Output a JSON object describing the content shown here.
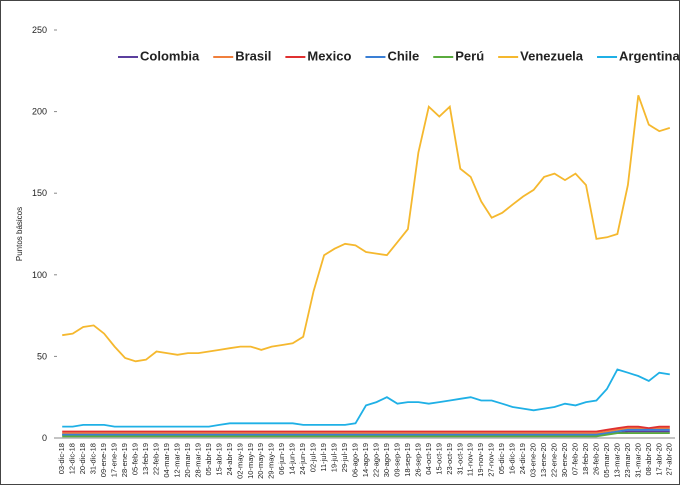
{
  "chart_data": {
    "type": "line",
    "y_label": "Puntos básicos",
    "categories": [
      "03-dic-18",
      "12-dic-18",
      "20-dic-18",
      "31-dic-18",
      "09-ene-19",
      "17-ene-19",
      "28-ene-19",
      "05-feb-19",
      "13-feb-19",
      "22-feb-19",
      "04-mar-19",
      "12-mar-19",
      "20-mar-19",
      "28-mar-19",
      "05-abr-19",
      "15-abr-19",
      "24-abr-19",
      "02-may-19",
      "10-may-19",
      "20-may-19",
      "29-may-19",
      "06-jun-19",
      "14-jun-19",
      "24-jun-19",
      "02-jul-19",
      "11-jul-19",
      "19-jul-19",
      "29-jul-19",
      "06-ago-19",
      "14-ago-19",
      "22-ago-19",
      "30-ago-19",
      "09-sep-19",
      "18-sep-19",
      "26-sep-19",
      "04-oct-19",
      "15-oct-19",
      "23-oct-19",
      "31-oct-19",
      "11-nov-19",
      "19-nov-19",
      "27-nov-19",
      "05-dic-19",
      "16-dic-19",
      "24-dic-19",
      "03-ene-20",
      "13-ene-20",
      "22-ene-20",
      "30-ene-20",
      "07-feb-20",
      "18-feb-20",
      "26-feb-20",
      "05-mar-20",
      "13-mar-20",
      "23-mar-20",
      "31-mar-20",
      "08-abr-20",
      "17-abr-20",
      "27-abr-20"
    ],
    "series": [
      {
        "name": "Colombia",
        "color": "#5b3f9e",
        "values": [
          2,
          2,
          2,
          2,
          2,
          2,
          2,
          2,
          2,
          2,
          2,
          2,
          2,
          2,
          2,
          2,
          2,
          2,
          2,
          2,
          2,
          2,
          2,
          2,
          2,
          2,
          2,
          2,
          2,
          2,
          2,
          2,
          2,
          2,
          2,
          2,
          2,
          2,
          2,
          2,
          2,
          2,
          2,
          2,
          2,
          2,
          2,
          2,
          2,
          2,
          2,
          2,
          3,
          3,
          4,
          4,
          4,
          4,
          4
        ]
      },
      {
        "name": "Brasil",
        "color": "#f07f3c",
        "values": [
          3,
          3,
          3,
          3,
          3,
          3,
          3,
          3,
          3,
          3,
          3,
          3,
          3,
          3,
          3,
          3,
          3,
          3,
          3,
          3,
          3,
          3,
          3,
          3,
          3,
          3,
          3,
          3,
          3,
          3,
          3,
          3,
          3,
          3,
          3,
          3,
          3,
          3,
          3,
          3,
          3,
          3,
          3,
          3,
          3,
          3,
          3,
          3,
          3,
          3,
          3,
          3,
          4,
          5,
          6,
          6,
          5,
          6,
          6
        ]
      },
      {
        "name": "Mexico",
        "color": "#e03030",
        "values": [
          4,
          4,
          4,
          4,
          4,
          4,
          4,
          4,
          4,
          4,
          4,
          4,
          4,
          4,
          4,
          4,
          4,
          4,
          4,
          4,
          4,
          4,
          4,
          4,
          4,
          4,
          4,
          4,
          4,
          4,
          4,
          4,
          4,
          4,
          4,
          4,
          4,
          4,
          4,
          4,
          4,
          4,
          4,
          4,
          4,
          4,
          4,
          4,
          4,
          4,
          4,
          4,
          5,
          6,
          7,
          7,
          6,
          7,
          7
        ]
      },
      {
        "name": "Chile",
        "color": "#3a7fd5",
        "values": [
          2,
          2,
          2,
          2,
          2,
          2,
          2,
          2,
          2,
          2,
          2,
          2,
          2,
          2,
          2,
          2,
          2,
          2,
          2,
          2,
          2,
          2,
          2,
          2,
          2,
          2,
          2,
          2,
          2,
          2,
          2,
          2,
          2,
          2,
          2,
          2,
          2,
          2,
          2,
          2,
          2,
          2,
          2,
          2,
          2,
          2,
          2,
          2,
          2,
          2,
          2,
          2,
          3,
          4,
          5,
          5,
          5,
          5,
          5
        ]
      },
      {
        "name": "Perú",
        "color": "#5aab3e",
        "values": [
          1,
          1,
          1,
          1,
          1,
          1,
          1,
          1,
          1,
          1,
          1,
          1,
          1,
          1,
          1,
          1,
          1,
          1,
          1,
          1,
          1,
          1,
          1,
          1,
          1,
          1,
          1,
          1,
          1,
          1,
          1,
          1,
          1,
          1,
          1,
          1,
          1,
          1,
          1,
          1,
          1,
          1,
          1,
          1,
          1,
          1,
          1,
          1,
          1,
          1,
          1,
          1,
          2,
          3,
          3,
          3,
          3,
          3,
          3
        ]
      },
      {
        "name": "Venezuela",
        "color": "#f5b82e",
        "values": [
          63,
          64,
          68,
          69,
          64,
          56,
          49,
          47,
          48,
          53,
          52,
          51,
          52,
          52,
          53,
          54,
          55,
          56,
          56,
          54,
          56,
          57,
          58,
          62,
          90,
          112,
          116,
          119,
          118,
          114,
          113,
          112,
          120,
          128,
          175,
          203,
          197,
          203,
          165,
          160,
          145,
          135,
          138,
          143,
          148,
          152,
          160,
          162,
          158,
          162,
          155,
          122,
          123,
          125,
          155,
          210,
          192,
          188,
          190
        ]
      },
      {
        "name": "Argentina",
        "color": "#1fb0e6",
        "values": [
          7,
          7,
          8,
          8,
          8,
          7,
          7,
          7,
          7,
          7,
          7,
          7,
          7,
          7,
          7,
          8,
          9,
          9,
          9,
          9,
          9,
          9,
          9,
          8,
          8,
          8,
          8,
          8,
          9,
          20,
          22,
          25,
          21,
          22,
          22,
          21,
          22,
          23,
          24,
          25,
          23,
          23,
          21,
          19,
          18,
          17,
          18,
          19,
          21,
          20,
          22,
          23,
          30,
          42,
          40,
          38,
          35,
          40,
          39
        ]
      }
    ],
    "ylim": [
      0,
      250
    ],
    "yticks": [
      0,
      50,
      100,
      150,
      200,
      250
    ],
    "legend": "top"
  }
}
